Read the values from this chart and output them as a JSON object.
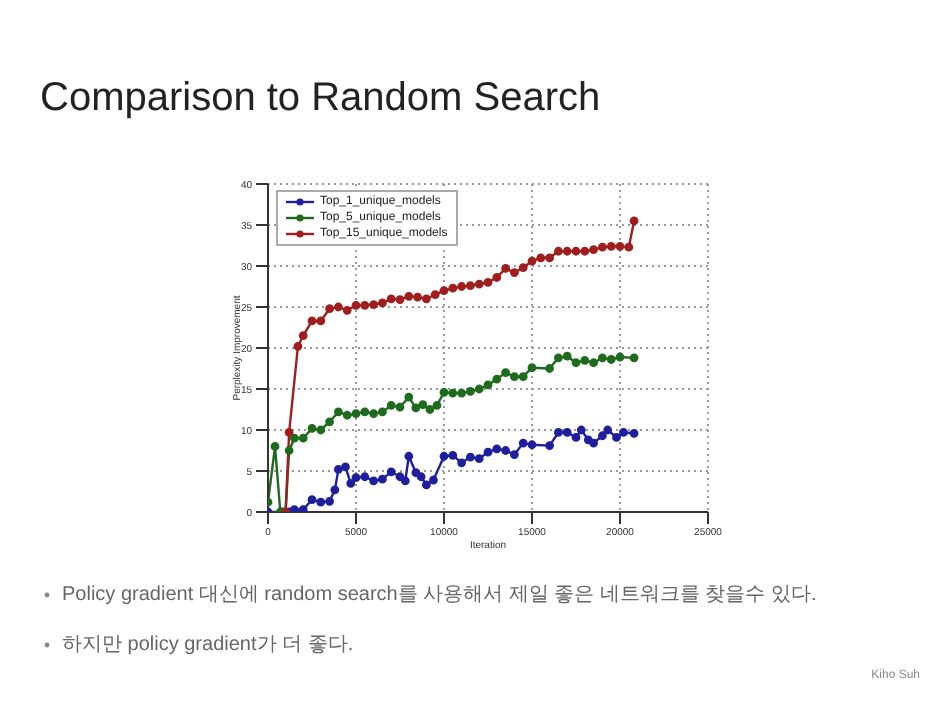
{
  "chart_data": {
    "type": "line",
    "title": "Comparison to Random Search",
    "xlabel": "Iteration",
    "ylabel": "Perplexity Improvement",
    "xlim": [
      0,
      25000
    ],
    "xticks": [
      0,
      5000,
      10000,
      15000,
      20000,
      25000
    ],
    "ylim": [
      0,
      40
    ],
    "yticks": [
      0,
      5,
      10,
      15,
      20,
      25,
      30,
      35,
      40
    ],
    "grid": true,
    "legend": "top left",
    "marker": "circle",
    "line_style": "solid",
    "annotations": [
      "Policy gradient 대신에 random search를 사용해서 제일 좋은 네트워크를 찾을수 있다.",
      "하지만 policy gradient가 더 좋다.",
      "Kiho Suh"
    ],
    "series": [
      {
        "name": "Top_1_unique_models",
        "color": "#1f1f9e",
        "x": [
          0,
          800,
          1200,
          1500,
          2000,
          2500,
          3000,
          3500,
          3800,
          4000,
          4400,
          4700,
          5000,
          5500,
          6000,
          6500,
          7000,
          7500,
          7800,
          8000,
          8400,
          8700,
          9000,
          9400,
          10000,
          10500,
          11000,
          11500,
          12000,
          12500,
          13000,
          13500,
          14000,
          14500,
          15000,
          16000,
          16500,
          17000,
          17500,
          17800,
          18200,
          18500,
          19000,
          19300,
          19800,
          20200,
          20800
        ],
        "values": [
          0,
          0,
          0,
          0.3,
          0.3,
          1.5,
          1.2,
          1.3,
          2.7,
          5.2,
          5.5,
          3.5,
          4.2,
          4.3,
          3.8,
          4,
          4.9,
          4.3,
          3.8,
          6.8,
          4.8,
          4.3,
          3.3,
          3.9,
          6.8,
          6.9,
          6,
          6.7,
          6.5,
          7.3,
          7.7,
          7.5,
          7,
          8.4,
          8.2,
          8.1,
          9.7,
          9.7,
          9.1,
          10,
          8.8,
          8.4,
          9.3,
          10,
          9.1,
          9.7,
          9.6
        ]
      },
      {
        "name": "Top_5_unique_models",
        "color": "#1e6b1e",
        "x": [
          0,
          400,
          700,
          1000,
          1200,
          1500,
          2000,
          2500,
          3000,
          3500,
          4000,
          4500,
          5000,
          5500,
          6000,
          6500,
          7000,
          7500,
          8000,
          8400,
          8800,
          9200,
          9600,
          10000,
          10500,
          11000,
          11500,
          12000,
          12500,
          13000,
          13500,
          14000,
          14500,
          15000,
          16000,
          16500,
          17000,
          17500,
          18000,
          18500,
          19000,
          19500,
          20000,
          20800
        ],
        "values": [
          1.2,
          8,
          0,
          0,
          7.5,
          9,
          9,
          10.2,
          10,
          11,
          12.2,
          11.8,
          12,
          12.2,
          12,
          12.2,
          13,
          12.8,
          14,
          12.7,
          13.1,
          12.5,
          13,
          14.6,
          14.5,
          14.5,
          14.7,
          15,
          15.5,
          16.2,
          17,
          16.5,
          16.5,
          17.6,
          17.5,
          18.8,
          19,
          18.2,
          18.5,
          18.2,
          18.8,
          18.6,
          18.9,
          18.8
        ]
      },
      {
        "name": "Top_15_unique_models",
        "color": "#a01e1e",
        "x": [
          1000,
          1200,
          1700,
          2000,
          2500,
          3000,
          3500,
          4000,
          4500,
          5000,
          5500,
          6000,
          6500,
          7000,
          7500,
          8000,
          8500,
          9000,
          9500,
          10000,
          10500,
          11000,
          11500,
          12000,
          12500,
          13000,
          13500,
          14000,
          14500,
          15000,
          15500,
          16000,
          16500,
          17000,
          17500,
          18000,
          18500,
          19000,
          19500,
          20000,
          20500,
          20800
        ],
        "values": [
          0,
          9.7,
          20.2,
          21.5,
          23.3,
          23.3,
          24.8,
          25,
          24.6,
          25.2,
          25.2,
          25.3,
          25.5,
          26,
          25.9,
          26.3,
          26.2,
          26,
          26.5,
          27,
          27.3,
          27.5,
          27.6,
          27.8,
          28,
          28.6,
          29.7,
          29.2,
          29.8,
          30.6,
          31,
          31,
          31.8,
          31.8,
          31.8,
          31.8,
          32,
          32.3,
          32.4,
          32.4,
          32.3,
          35.5
        ]
      }
    ]
  }
}
